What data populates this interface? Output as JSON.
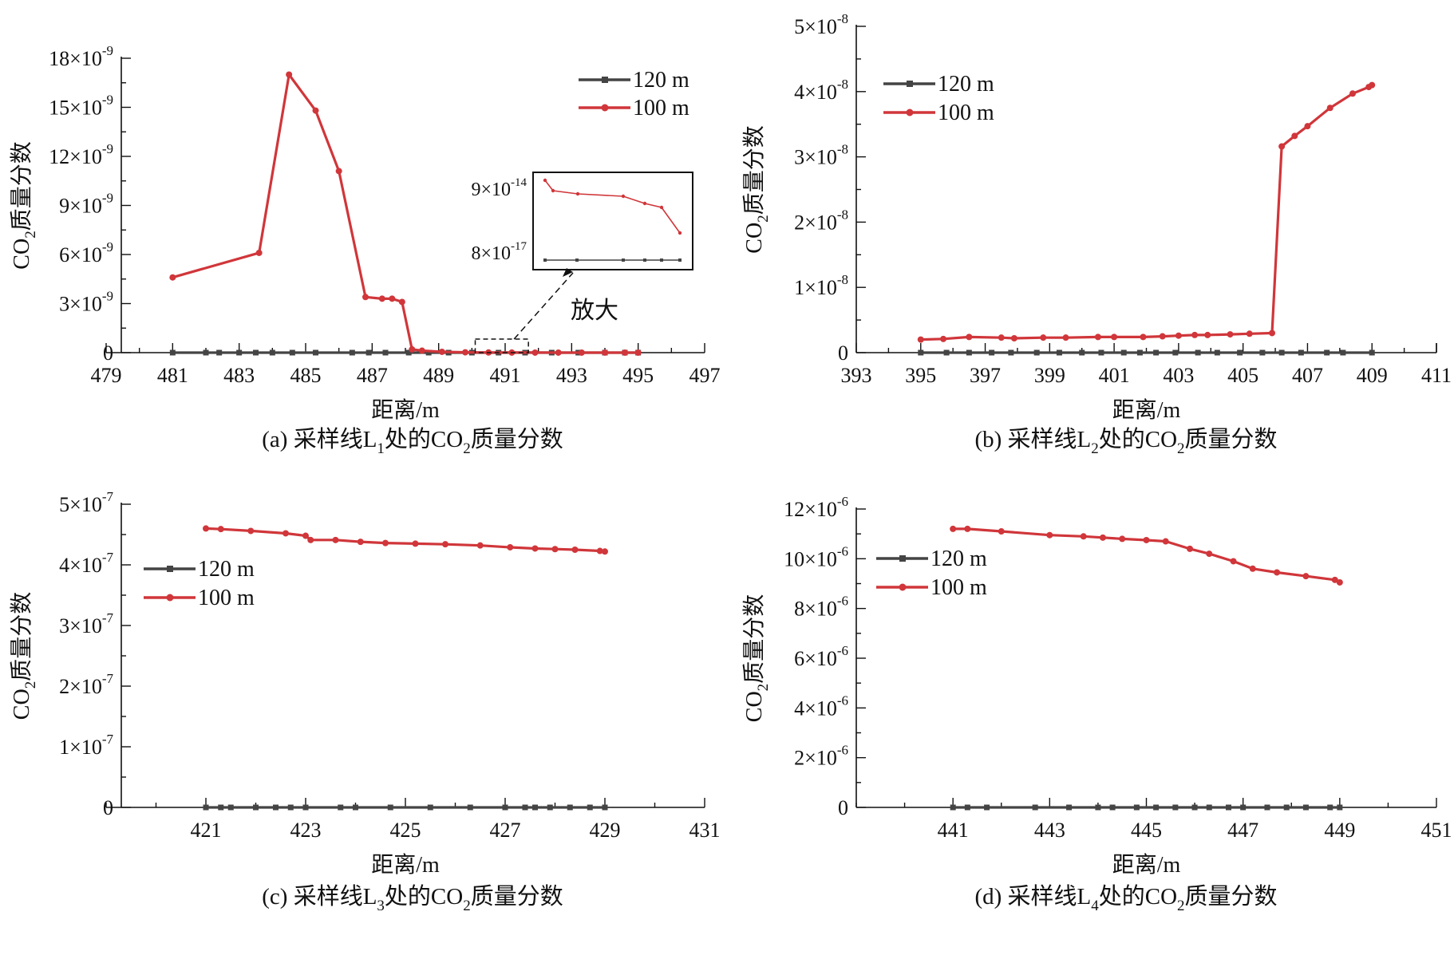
{
  "figure": {
    "legend": {
      "series_a": "120 m",
      "series_b": "100 m"
    },
    "colors": {
      "series_a": "#444444",
      "series_b": "#d0363a",
      "axis": "#111111"
    },
    "ylabel_prefix": "CO",
    "ylabel_sub": "2",
    "ylabel_suffix": "质量分数",
    "xlabel": "距离/m",
    "panels": [
      {
        "id": "a",
        "caption": {
          "prefix": "(a) 采样线L",
          "sub1": "1",
          "mid": "处的CO",
          "sub2": "2",
          "suffix": "质量分数"
        },
        "exponent": "-9",
        "y_ticks": [
          {
            "v": 0,
            "m": "0"
          },
          {
            "v": 3,
            "m": "3"
          },
          {
            "v": 6,
            "m": "6"
          },
          {
            "v": 9,
            "m": "9"
          },
          {
            "v": 12,
            "m": "12"
          },
          {
            "v": 15,
            "m": "15"
          },
          {
            "v": 18,
            "m": "18"
          }
        ],
        "inset": {
          "label": "放大",
          "ticks": [
            {
              "m": "9",
              "e": "-14"
            },
            {
              "m": "8",
              "e": "-17"
            }
          ]
        }
      },
      {
        "id": "b",
        "caption": {
          "prefix": "(b) 采样线L",
          "sub1": "2",
          "mid": "处的CO",
          "sub2": "2",
          "suffix": "质量分数"
        },
        "exponent": "-8",
        "y_ticks": [
          {
            "v": 0,
            "m": "0"
          },
          {
            "v": 1,
            "m": "1"
          },
          {
            "v": 2,
            "m": "2"
          },
          {
            "v": 3,
            "m": "3"
          },
          {
            "v": 4,
            "m": "4"
          },
          {
            "v": 5,
            "m": "5"
          }
        ]
      },
      {
        "id": "c",
        "caption": {
          "prefix": "(c) 采样线L",
          "sub1": "3",
          "mid": "处的CO",
          "sub2": "2",
          "suffix": "质量分数"
        },
        "exponent": "-7",
        "y_ticks": [
          {
            "v": 0,
            "m": "0"
          },
          {
            "v": 1,
            "m": "1"
          },
          {
            "v": 2,
            "m": "2"
          },
          {
            "v": 3,
            "m": "3"
          },
          {
            "v": 4,
            "m": "4"
          },
          {
            "v": 5,
            "m": "5"
          }
        ]
      },
      {
        "id": "d",
        "caption": {
          "prefix": "(d) 采样线L",
          "sub1": "4",
          "mid": "处的CO",
          "sub2": "2",
          "suffix": "质量分数"
        },
        "exponent": "-6",
        "y_ticks": [
          {
            "v": 0,
            "m": "0"
          },
          {
            "v": 2,
            "m": "2"
          },
          {
            "v": 4,
            "m": "4"
          },
          {
            "v": 6,
            "m": "6"
          },
          {
            "v": 8,
            "m": "8"
          },
          {
            "v": 10,
            "m": "10"
          },
          {
            "v": 12,
            "m": "12"
          }
        ]
      }
    ]
  },
  "chart_data": [
    {
      "type": "line",
      "title": "(a) 采样线L1处的CO2质量分数",
      "xlabel": "距离/m",
      "ylabel": "CO2质量分数",
      "xlim": [
        479,
        497
      ],
      "ylim": [
        0,
        1.8e-08
      ],
      "x_ticks": [
        479,
        481,
        483,
        485,
        487,
        489,
        491,
        493,
        495,
        497
      ],
      "legend_position": "top-right",
      "series": [
        {
          "name": "120 m",
          "x": [
            481,
            482,
            482.4,
            483,
            483.5,
            484,
            484.6,
            485.3,
            486.4,
            486.9,
            487.4,
            488.1,
            488.7,
            489.3,
            490,
            490.8,
            491.6,
            492.4,
            493.2,
            494,
            494.6,
            495
          ],
          "y": [
            0,
            0,
            0,
            0,
            0,
            0,
            0,
            0,
            0,
            0,
            0,
            0,
            0,
            0,
            0,
            0,
            0,
            0,
            0,
            0,
            0,
            0
          ]
        },
        {
          "name": "100 m",
          "x": [
            481,
            483.6,
            484.5,
            485.3,
            486,
            486.8,
            487.3,
            487.6,
            487.9,
            488.2,
            488.5,
            489.1,
            489.8,
            490.5,
            491.2,
            491.9,
            492.6,
            493.3,
            494,
            494.6,
            495
          ],
          "y": [
            4.6e-09,
            6.1e-09,
            1.7e-08,
            1.48e-08,
            1.11e-08,
            3.4e-09,
            3.3e-09,
            3.3e-09,
            3.1e-09,
            2e-10,
            1.2e-10,
            5e-11,
            2e-11,
            1e-11,
            5e-12,
            3e-12,
            2e-12,
            1e-12,
            1e-12,
            5e-13,
            1e-13
          ]
        }
      ]
    },
    {
      "type": "line",
      "title": "(b) 采样线L2处的CO2质量分数",
      "xlabel": "距离/m",
      "ylabel": "CO2质量分数",
      "xlim": [
        393,
        411
      ],
      "ylim": [
        0,
        5e-08
      ],
      "x_ticks": [
        393,
        395,
        397,
        399,
        401,
        403,
        405,
        407,
        409,
        411
      ],
      "legend_position": "top-left",
      "series": [
        {
          "name": "120 m",
          "x": [
            395,
            395.8,
            396.5,
            397.2,
            397.8,
            398.6,
            399.3,
            400,
            400.6,
            401.3,
            401.8,
            402.3,
            402.9,
            403.6,
            404.2,
            404.9,
            405.6,
            406.2,
            406.8,
            407.6,
            408.1,
            409
          ],
          "y": [
            0,
            0,
            0,
            0,
            0,
            0,
            0,
            0,
            0,
            0,
            0,
            0,
            0,
            0,
            0,
            0,
            0,
            0,
            0,
            0,
            0,
            0
          ]
        },
        {
          "name": "100 m",
          "x": [
            395,
            395.7,
            396.5,
            397.5,
            397.9,
            398.8,
            399.5,
            400.5,
            401,
            401.9,
            402.5,
            403,
            403.5,
            403.9,
            404.6,
            405.2,
            405.9,
            406.2,
            406.6,
            407,
            407.7,
            408.4,
            408.9,
            409
          ],
          "y": [
            2e-09,
            2.1e-09,
            2.4e-09,
            2.3e-09,
            2.2e-09,
            2.3e-09,
            2.3e-09,
            2.4e-09,
            2.4e-09,
            2.4e-09,
            2.5e-09,
            2.6e-09,
            2.7e-09,
            2.7e-09,
            2.8e-09,
            2.9e-09,
            3e-09,
            3.16e-08,
            3.32e-08,
            3.47e-08,
            3.75e-08,
            3.97e-08,
            4.07e-08,
            4.1e-08
          ]
        }
      ]
    },
    {
      "type": "line",
      "title": "(c) 采样线L3处的CO2质量分数",
      "xlabel": "距离/m",
      "ylabel": "CO2质量分数",
      "xlim": [
        419,
        431
      ],
      "ylim": [
        0,
        5e-07
      ],
      "x_ticks": [
        421,
        423,
        425,
        427,
        429,
        431
      ],
      "legend_position": "top-left",
      "series": [
        {
          "name": "120 m",
          "x": [
            421,
            421.3,
            421.5,
            422,
            422.4,
            422.7,
            423,
            423.7,
            424,
            424.7,
            425.5,
            426.3,
            427,
            427.4,
            427.6,
            427.9,
            428.3,
            428.7,
            429
          ],
          "y": [
            0,
            0,
            0,
            0,
            0,
            0,
            0,
            0,
            0,
            0,
            0,
            0,
            0,
            0,
            0,
            0,
            0,
            0,
            0
          ]
        },
        {
          "name": "100 m",
          "x": [
            421,
            421.3,
            421.9,
            422.6,
            423,
            423.1,
            423.6,
            424.1,
            424.6,
            425.2,
            425.8,
            426.5,
            427.1,
            427.6,
            428,
            428.4,
            428.9,
            429
          ],
          "y": [
            4.6e-07,
            4.59e-07,
            4.56e-07,
            4.52e-07,
            4.48e-07,
            4.41e-07,
            4.41e-07,
            4.38e-07,
            4.36e-07,
            4.35e-07,
            4.34e-07,
            4.32e-07,
            4.29e-07,
            4.27e-07,
            4.26e-07,
            4.25e-07,
            4.23e-07,
            4.22e-07
          ]
        }
      ]
    },
    {
      "type": "line",
      "title": "(d) 采样线L4处的CO2质量分数",
      "xlabel": "距离/m",
      "ylabel": "CO2质量分数",
      "xlim": [
        439,
        451
      ],
      "ylim": [
        0,
        1.2e-05
      ],
      "x_ticks": [
        441,
        443,
        445,
        447,
        449,
        451
      ],
      "legend_position": "top-left",
      "series": [
        {
          "name": "120 m",
          "x": [
            441,
            441.3,
            441.7,
            442.7,
            443.4,
            444,
            444.3,
            444.8,
            445.2,
            445.6,
            446,
            446.3,
            446.7,
            447,
            447.5,
            447.9,
            448.3,
            448.8,
            449
          ],
          "y": [
            0,
            0,
            0,
            0,
            0,
            0,
            0,
            0,
            0,
            0,
            0,
            0,
            0,
            0,
            0,
            0,
            0,
            0,
            0
          ]
        },
        {
          "name": "100 m",
          "x": [
            441,
            441.3,
            442,
            443,
            443.7,
            444.1,
            444.5,
            445,
            445.4,
            445.9,
            446.3,
            446.8,
            447.2,
            447.7,
            448.3,
            448.9,
            449
          ],
          "y": [
            1.12e-05,
            1.12e-05,
            1.11e-05,
            1.095e-05,
            1.09e-05,
            1.085e-05,
            1.08e-05,
            1.075e-05,
            1.07e-05,
            1.04e-05,
            1.02e-05,
            9.9e-06,
            9.6e-06,
            9.45e-06,
            9.3e-06,
            9.15e-06,
            9.05e-06
          ]
        }
      ]
    }
  ]
}
